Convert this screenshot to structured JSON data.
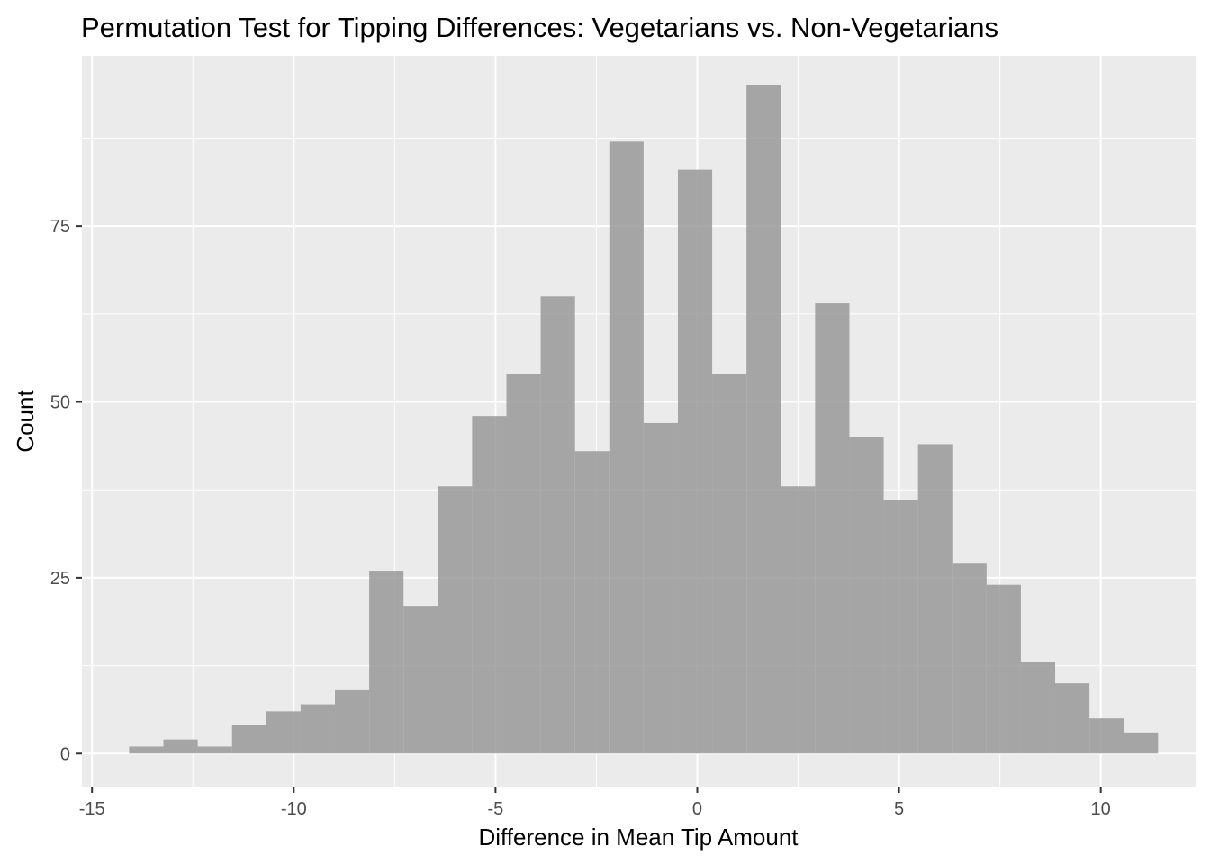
{
  "chart_data": {
    "type": "bar",
    "title": "Permutation Test for Tipping Differences: Vegetarians vs. Non-Vegetarians",
    "xlabel": "Difference in Mean Tip Amount",
    "ylabel": "Count",
    "xlim": [
      -15.25,
      12.35
    ],
    "ylim": [
      -4.7,
      99.2
    ],
    "x_ticks": [
      -15,
      -10,
      -5,
      0,
      5,
      10
    ],
    "y_ticks": [
      0,
      25,
      50,
      75
    ],
    "grid": true,
    "bin_width": 0.85,
    "bin_start": -14.08,
    "values": [
      1,
      2,
      1,
      4,
      6,
      7,
      9,
      26,
      21,
      38,
      48,
      54,
      65,
      43,
      87,
      47,
      83,
      54,
      95,
      38,
      64,
      45,
      36,
      44,
      27,
      24,
      13,
      10,
      5,
      3
    ],
    "colors": {
      "panel": "#ebebeb",
      "grid_major": "#ffffff",
      "bar": "#999999",
      "bar_opacity": 0.85,
      "axis_text": "#4d4d4d",
      "tick": "#333333"
    }
  }
}
